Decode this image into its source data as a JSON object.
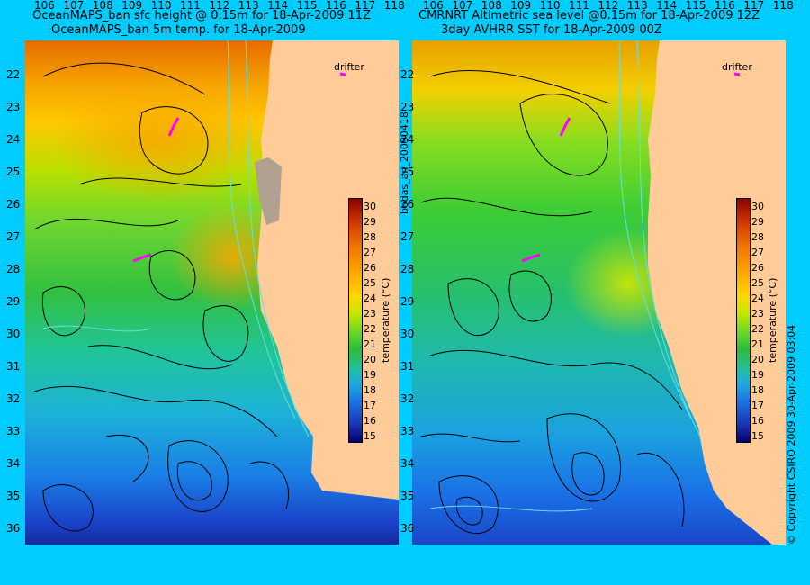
{
  "left_panel": {
    "title_line1": "OceanMAPS_ban sfc height @ 0.15m for 18-Apr-2009 11Z",
    "title_line2": "OceanMAPS_ban 5m temp. for 18-Apr-2009"
  },
  "right_panel": {
    "title_line1": "CMRNRT Altimetric sea level  @0.15m  for 18-Apr-2009 12Z",
    "title_line2": "3day AVHRR SST for 18-Apr-2009 00Z"
  },
  "latitudes": [
    "22",
    "23",
    "24",
    "25",
    "26",
    "27",
    "28",
    "29",
    "30",
    "31",
    "32",
    "33",
    "34",
    "35",
    "36"
  ],
  "longitudes": [
    "106",
    "107",
    "108",
    "109",
    "110",
    "111",
    "112",
    "113",
    "114",
    "115",
    "116",
    "117",
    "118"
  ],
  "colorbar": {
    "ticks": [
      "30",
      "29",
      "28",
      "27",
      "26",
      "25",
      "24",
      "23",
      "22",
      "21",
      "20",
      "19",
      "18",
      "17",
      "16",
      "15"
    ],
    "label": "temperature (°C)"
  },
  "drifter_label": "drifter",
  "side_text_left": "bodas_an_20090418",
  "side_text_right": "© Copyright CSIRO 2009   30-Apr-2009 03:04",
  "colors": {
    "background": "#00ccff",
    "land": "#ffcc99",
    "contour": "#000000",
    "bathymetry": "#66e0e0",
    "drifter": "#ff00ff"
  }
}
